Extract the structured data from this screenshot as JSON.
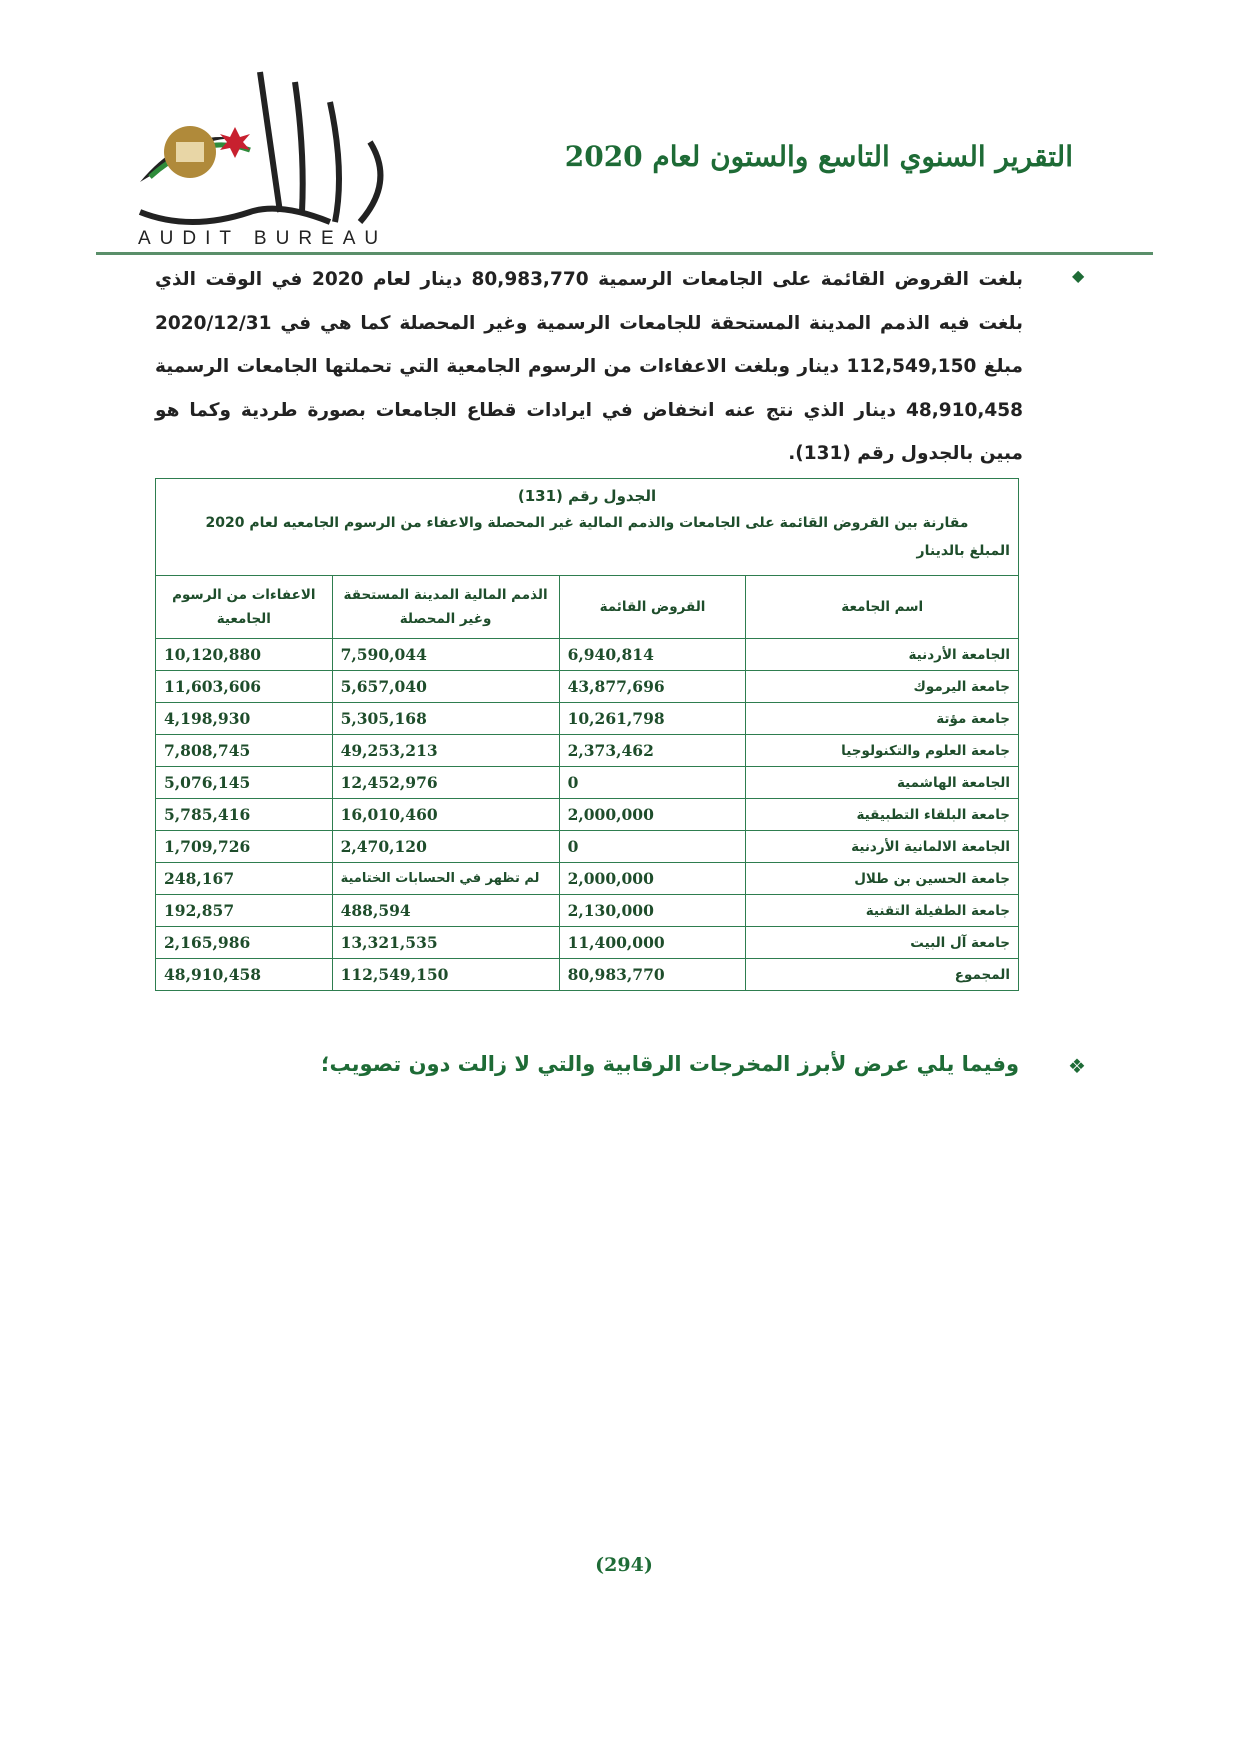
{
  "header": {
    "logo_text_ar": "ديوان المحاسبة",
    "logo_text_en": "AUDIT BUREAU",
    "title": "التقرير السنوي التاسع والستون لعام 2020"
  },
  "paragraph": {
    "bullet_icon": "diamond",
    "text": "بلغت القروض القائمة على الجامعات الرسمية 80,983,770 دينار لعام 2020 في الوقت الذي بلغت فيه الذمم المدينة المستحقة للجامعات الرسمية وغير المحصلة كما هي في 2020/12/31 مبلغ 112,549,150 دينار وبلغت الاعفاءات من الرسوم الجامعية التي تحملتها الجامعات الرسمية 48,910,458 دينار الذي نتج عنه انخفاض في ايرادات قطاع الجامعات بصورة طردية وكما هو مبين بالجدول رقم (131)."
  },
  "table": {
    "number_label": "الجدول رقم (131)",
    "caption": "مقارنة بين القروض القائمة على الجامعات والذمم المالية غير المحصلة والاعفاء من الرسوم الجامعيه لعام 2020",
    "unit": "المبلغ بالدينار",
    "columns": [
      "اسم الجامعة",
      "القروض القائمة",
      "الذمم المالية المدينة المستحقة وغير المحصلة",
      "الاعفاءات من الرسوم الجامعية"
    ],
    "rows": [
      [
        "الجامعة الأردنية",
        "6,940,814",
        "7,590,044",
        "10,120,880"
      ],
      [
        "جامعة اليرموك",
        "43,877,696",
        "5,657,040",
        "11,603,606"
      ],
      [
        "جامعة مؤتة",
        "10,261,798",
        "5,305,168",
        "4,198,930"
      ],
      [
        "جامعة العلوم والتكنولوجيا",
        "2,373,462",
        "49,253,213",
        "7,808,745"
      ],
      [
        "الجامعة الهاشمية",
        "0",
        "12,452,976",
        "5,076,145"
      ],
      [
        "جامعة البلقاء التطبيقية",
        "2,000,000",
        "16,010,460",
        "5,785,416"
      ],
      [
        "الجامعة الالمانية الأردنية",
        "0",
        "2,470,120",
        "1,709,726"
      ],
      [
        "جامعة الحسين بن طلال",
        "2,000,000",
        "لم تظهر في الحسابات الختامية",
        "248,167"
      ],
      [
        "جامعة الطفيلة التقنية",
        "2,130,000",
        "488,594",
        "192,857"
      ],
      [
        "جامعة آل البيت",
        "11,400,000",
        "13,321,535",
        "2,165,986"
      ],
      [
        "المجموع",
        "80,983,770",
        "112,549,150",
        "48,910,458"
      ]
    ]
  },
  "closing": {
    "bullet_icon": "four-diamonds",
    "text": "وفيما يلي عرض لأبرز المخرجات الرقابية والتي لا زالت دون تصويب؛"
  },
  "page_number": "(294)",
  "colors": {
    "accent_green": "#1e6b36",
    "border_green": "#2e7d4f",
    "logo_gold": "#b08a3a",
    "logo_red": "#c8202f"
  }
}
